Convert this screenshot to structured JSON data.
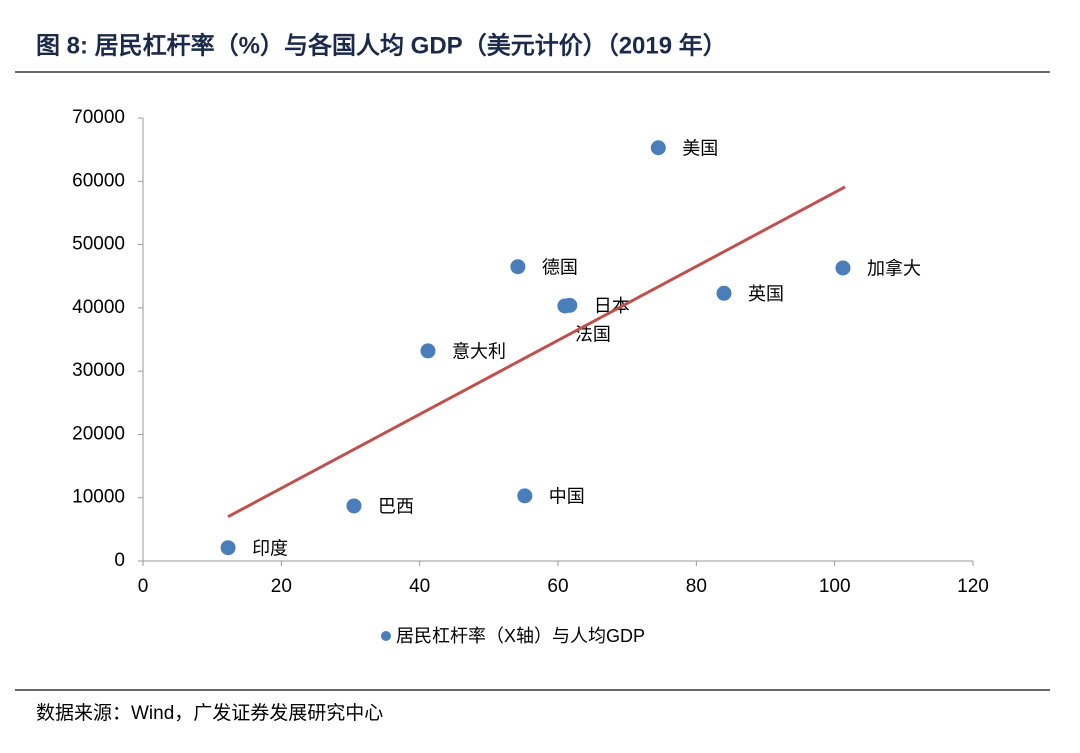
{
  "title": "图 8:  居民杠杆率（%）与各国人均 GDP（美元计价）（2019 年）",
  "source": "数据来源：Wind，广发证券发展研究中心",
  "chart_data": {
    "type": "scatter",
    "series": [
      {
        "name": "居民杠杆率（X轴）与人均GDP",
        "color": "#4a7ebb",
        "labels": [
          "印度",
          "巴西",
          "中国",
          "意大利",
          "德国",
          "日本",
          "法国",
          "美国",
          "英国",
          "加拿大"
        ],
        "x": [
          12.3,
          30.5,
          55.2,
          41.2,
          54.2,
          61.7,
          61.0,
          74.5,
          84.0,
          101.2
        ],
        "values": [
          2100,
          8700,
          10300,
          33200,
          46500,
          40400,
          40300,
          65300,
          42300,
          46300
        ]
      }
    ],
    "trendline": {
      "x": [
        12.3,
        101.5
      ],
      "values": [
        7000,
        59100
      ],
      "color": "#c0504d"
    },
    "xlim": [
      0,
      120
    ],
    "xticks": [
      0,
      20,
      40,
      60,
      80,
      100,
      120
    ],
    "ylim": [
      0,
      70000
    ],
    "yticks": [
      0,
      10000,
      20000,
      30000,
      40000,
      50000,
      60000,
      70000
    ]
  }
}
